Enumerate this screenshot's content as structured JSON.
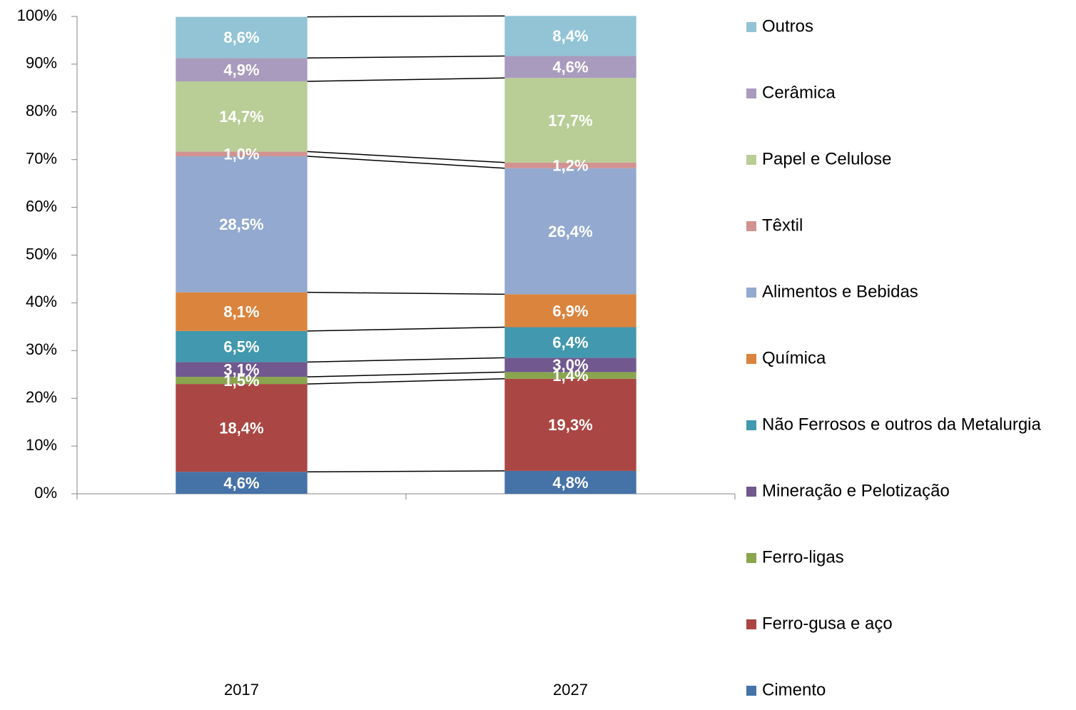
{
  "chart_data": {
    "type": "stacked_bar",
    "categories": [
      "2017",
      "2027"
    ],
    "series": [
      {
        "name": "Cimento",
        "color": "#4572a7",
        "values": [
          4.6,
          4.8
        ],
        "value_labels": [
          "4,6%",
          "4,8%"
        ]
      },
      {
        "name": "Ferro-gusa e aço",
        "color": "#aa4643",
        "values": [
          18.4,
          19.3
        ],
        "value_labels": [
          "18,4%",
          "19,3%"
        ]
      },
      {
        "name": "Ferro-ligas",
        "color": "#89a54e",
        "values": [
          1.5,
          1.4
        ],
        "value_labels": [
          "1,5%",
          "1,4%"
        ]
      },
      {
        "name": "Mineração e Pelotização",
        "color": "#71588f",
        "values": [
          3.1,
          3.0
        ],
        "value_labels": [
          "3,1%",
          "3,0%"
        ]
      },
      {
        "name": "Não Ferrosos e outros da Metalurgia",
        "color": "#4198af",
        "values": [
          6.5,
          6.4
        ],
        "value_labels": [
          "6,5%",
          "6,4%"
        ]
      },
      {
        "name": "Química",
        "color": "#db843d",
        "values": [
          8.1,
          6.9
        ],
        "value_labels": [
          "8,1%",
          "6,9%"
        ]
      },
      {
        "name": "Alimentos e Bebidas",
        "color": "#93a9cf",
        "values": [
          28.5,
          26.4
        ],
        "value_labels": [
          "28,5%",
          "26,4%"
        ]
      },
      {
        "name": "Têxtil",
        "color": "#d19392",
        "values": [
          1.0,
          1.2
        ],
        "value_labels": [
          "1,0%",
          "1,2%"
        ]
      },
      {
        "name": "Papel e Celulose",
        "color": "#b9cd96",
        "values": [
          14.7,
          17.7
        ],
        "value_labels": [
          "14,7%",
          "17,7%"
        ]
      },
      {
        "name": "Cerâmica",
        "color": "#a99bbd",
        "values": [
          4.9,
          4.6
        ],
        "value_labels": [
          "4,9%",
          "4,6%"
        ]
      },
      {
        "name": "Outros",
        "color": "#92c4d6",
        "values": [
          8.6,
          8.4
        ],
        "value_labels": [
          "8,6%",
          "8,4%"
        ]
      }
    ],
    "ylim": [
      0,
      100
    ],
    "yticks": [
      {
        "value": 0,
        "label": "0%"
      },
      {
        "value": 10,
        "label": "10%"
      },
      {
        "value": 20,
        "label": "20%"
      },
      {
        "value": 30,
        "label": "30%"
      },
      {
        "value": 40,
        "label": "40%"
      },
      {
        "value": 50,
        "label": "50%"
      },
      {
        "value": 60,
        "label": "60%"
      },
      {
        "value": 70,
        "label": "70%"
      },
      {
        "value": 80,
        "label": "80%"
      },
      {
        "value": 90,
        "label": "90%"
      },
      {
        "value": 100,
        "label": "100%"
      }
    ],
    "legend": "right"
  }
}
